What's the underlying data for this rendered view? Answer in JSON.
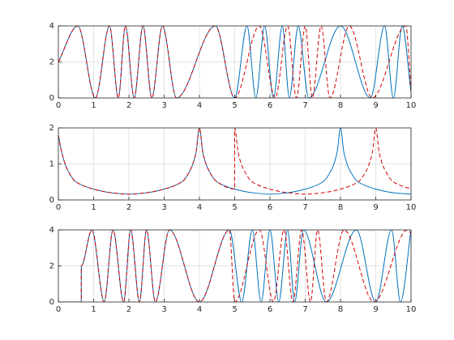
{
  "chart_data": [
    {
      "type": "line",
      "grid": true,
      "xlim": [
        0,
        10
      ],
      "ylim": [
        0,
        4
      ],
      "xticks": [
        0,
        1,
        2,
        3,
        4,
        5,
        6,
        7,
        8,
        9,
        10
      ],
      "yticks": [
        0,
        2,
        4
      ],
      "series": [
        {
          "color": "#0072bd",
          "linestyle": "solid",
          "x": [
            0,
            0.55,
            1.05,
            1.45,
            1.7,
            1.9,
            2.15,
            2.4,
            2.65,
            2.95,
            3.35,
            4.45,
            5.0,
            5.35,
            5.6,
            5.85,
            6.1,
            6.35,
            6.55,
            6.8,
            7.1,
            8.0,
            8.85,
            9.25,
            9.5,
            9.75,
            10
          ],
          "values": [
            2,
            4,
            0,
            4,
            0,
            4,
            0,
            4,
            0,
            4,
            0,
            4,
            0,
            4,
            0,
            4,
            0,
            4,
            0,
            4,
            0,
            4,
            0,
            4,
            0,
            4,
            0.3
          ]
        },
        {
          "color": "#d40000",
          "linestyle": "dashed",
          "x": [
            0,
            0.55,
            1.05,
            1.45,
            1.7,
            1.9,
            2.15,
            2.4,
            2.65,
            2.95,
            3.35,
            4.45,
            5.0,
            5.7,
            6.15,
            6.5,
            6.75,
            7.0,
            7.2,
            7.45,
            7.7,
            8.25,
            8.9,
            9.85,
            10
          ],
          "values": [
            2,
            4,
            0,
            4,
            0,
            4,
            0,
            4,
            0,
            4,
            0,
            4,
            0,
            4,
            0,
            4,
            0,
            4,
            0,
            4,
            0,
            4,
            0,
            4,
            0.4
          ]
        }
      ]
    },
    {
      "type": "line",
      "grid": true,
      "xlim": [
        0,
        10
      ],
      "ylim": [
        0,
        2
      ],
      "xticks": [
        0,
        1,
        2,
        3,
        4,
        5,
        6,
        7,
        8,
        9,
        10
      ],
      "yticks": [
        0,
        1,
        2
      ],
      "series": [
        {
          "color": "#0072bd",
          "linestyle": "solid",
          "x": [
            0,
            0.1,
            0.25,
            0.5,
            1,
            1.5,
            2,
            2.5,
            3,
            3.5,
            3.75,
            3.9,
            4,
            4.1,
            4.25,
            4.5,
            5,
            5.5,
            6,
            6.5,
            7,
            7.5,
            7.75,
            7.9,
            8,
            8.1,
            8.25,
            8.5,
            9,
            9.5,
            10
          ],
          "values": [
            1.8,
            1.3,
            0.85,
            0.5,
            0.3,
            0.2,
            0.16,
            0.2,
            0.3,
            0.5,
            0.85,
            1.3,
            2,
            1.3,
            0.85,
            0.5,
            0.3,
            0.2,
            0.16,
            0.2,
            0.3,
            0.5,
            0.85,
            1.3,
            2,
            1.3,
            0.85,
            0.5,
            0.3,
            0.2,
            0.16
          ]
        },
        {
          "color": "#d40000",
          "linestyle": "dashed",
          "x": [
            0,
            0.1,
            0.25,
            0.5,
            1,
            1.5,
            2,
            2.5,
            3,
            3.5,
            3.75,
            3.9,
            4,
            4.1,
            4.25,
            4.5,
            5,
            5,
            5.1,
            5.25,
            5.5,
            6,
            6.5,
            7,
            7.5,
            8,
            8.5,
            8.75,
            8.9,
            9,
            9.1,
            9.25,
            9.5,
            10
          ],
          "values": [
            1.8,
            1.3,
            0.85,
            0.5,
            0.3,
            0.2,
            0.16,
            0.2,
            0.3,
            0.5,
            0.85,
            1.3,
            2,
            1.3,
            0.85,
            0.5,
            0.3,
            2,
            1.3,
            0.85,
            0.5,
            0.3,
            0.2,
            0.16,
            0.2,
            0.3,
            0.5,
            0.85,
            1.3,
            2,
            1.3,
            0.85,
            0.5,
            0.3
          ]
        }
      ]
    },
    {
      "type": "line",
      "grid": true,
      "xlim": [
        0,
        10
      ],
      "ylim": [
        0,
        4
      ],
      "xticks": [
        0,
        1,
        2,
        3,
        4,
        5,
        6,
        7,
        8,
        9,
        10
      ],
      "yticks": [
        0,
        2,
        4
      ],
      "series": [
        {
          "color": "#0072bd",
          "linestyle": "solid",
          "x": [
            0,
            0.65,
            0.65,
            0.95,
            1.3,
            1.55,
            1.85,
            2.05,
            2.3,
            2.5,
            2.75,
            3.15,
            4.0,
            4.85,
            5.2,
            5.5,
            5.75,
            6.0,
            6.25,
            6.5,
            6.7,
            6.95,
            7.6,
            8.45,
            9.0,
            9.45,
            9.7,
            10
          ],
          "values": [
            0,
            0,
            2,
            4,
            0,
            4,
            0,
            4,
            0,
            4,
            0,
            4,
            0,
            4,
            0,
            4,
            0,
            4,
            0,
            4,
            0,
            4,
            0,
            4,
            0,
            4,
            0,
            4
          ]
        },
        {
          "color": "#d40000",
          "linestyle": "dashed",
          "x": [
            0,
            0.65,
            0.65,
            0.95,
            1.3,
            1.55,
            1.85,
            2.05,
            2.3,
            2.5,
            2.75,
            3.15,
            4.0,
            4.85,
            5.0,
            5.7,
            6.1,
            6.4,
            6.65,
            6.9,
            7.15,
            7.35,
            7.6,
            8.1,
            8.95,
            9.9,
            10
          ],
          "values": [
            0,
            0,
            2,
            4,
            0,
            4,
            0,
            4,
            0,
            4,
            0,
            4,
            0,
            4,
            0,
            4,
            0,
            4,
            0,
            4,
            0,
            4,
            0,
            4,
            0,
            4,
            3.8
          ]
        }
      ]
    }
  ]
}
